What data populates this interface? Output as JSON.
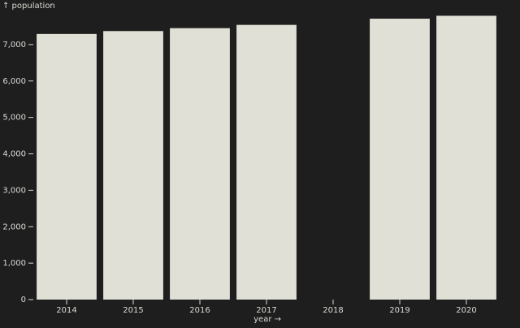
{
  "chart_data": {
    "type": "bar",
    "title": "",
    "xlabel": "year →",
    "ylabel": "↑ population",
    "categories": [
      "2014",
      "2015",
      "2016",
      "2017",
      "2018",
      "2019",
      "2020"
    ],
    "values": [
      7290,
      7370,
      7450,
      7540,
      null,
      7710,
      7790
    ],
    "ylim": [
      0,
      8000
    ],
    "yticks": [
      0,
      1000,
      2000,
      3000,
      4000,
      5000,
      6000,
      7000
    ],
    "ytick_labels": [
      "0",
      "1,000",
      "2,000",
      "3,000",
      "4,000",
      "5,000",
      "6,000",
      "7,000"
    ],
    "grid": false,
    "legend": "none",
    "colors": {
      "background": "#1e1e1e",
      "bar": "#e0e0d6",
      "text": "#d9d9d4"
    }
  }
}
